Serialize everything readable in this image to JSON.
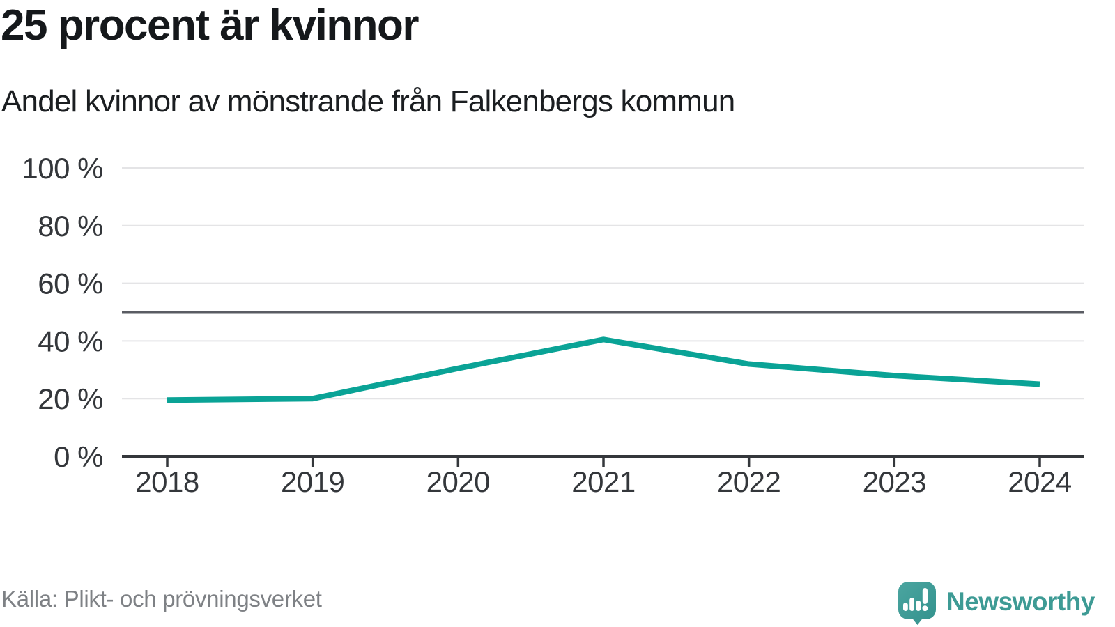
{
  "header": {
    "title": "25 procent är kvinnor",
    "subtitle": "Andel kvinnor av mönstrande från Falkenbergs kommun"
  },
  "footer": {
    "source": "Källa: Plikt- och prövningsverket",
    "logo_text": "Newsworthy"
  },
  "icons": {
    "logo_icon": "newsworthy-speech-bubble-with-bar-chart-and-exclamation"
  },
  "colors": {
    "line": "#0AA396",
    "grid": "#E4E4E6",
    "reference_line": "#5A5C63",
    "axis": "#34373B",
    "tick_label": "#34373B",
    "logo_teal_text": "#3E9B95",
    "logo_fill_light": "#4BA5A0",
    "logo_fill_dark": "#34938E"
  },
  "chart_data": {
    "type": "line",
    "title": "25 procent är kvinnor",
    "subtitle": "Andel kvinnor av mönstrande från Falkenbergs kommun",
    "x": [
      "2018",
      "2019",
      "2020",
      "2021",
      "2022",
      "2023",
      "2024"
    ],
    "series": [
      {
        "name": "Andel kvinnor av mönstrande",
        "values": [
          19.5,
          20,
          30.5,
          40.5,
          32,
          28,
          25
        ]
      }
    ],
    "unit": "%",
    "ylim": [
      0,
      100
    ],
    "yticks": [
      0,
      20,
      40,
      60,
      80,
      100
    ],
    "ytick_labels": [
      "0 %",
      "20 %",
      "40 %",
      "60 %",
      "80 %",
      "100 %"
    ],
    "reference_line_value": 50,
    "grid": "horizontal-only",
    "legend": "none",
    "source": "Källa: Plikt- och prövningsverket"
  }
}
